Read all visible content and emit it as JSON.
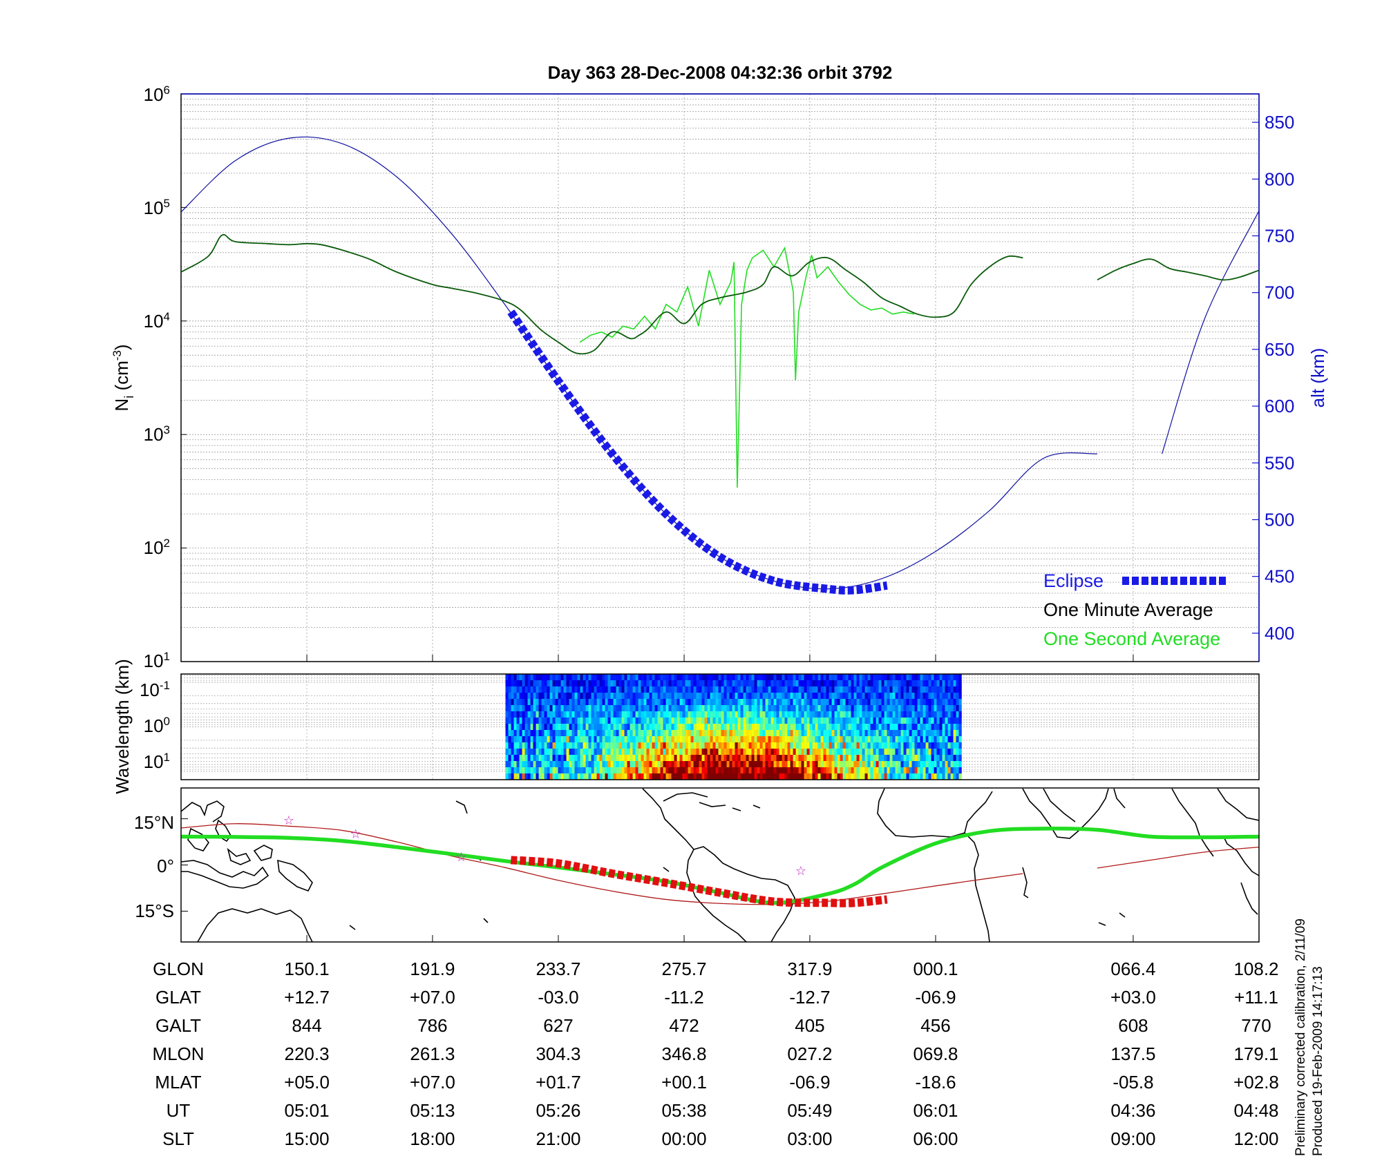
{
  "chart_data": [
    {
      "type": "line",
      "title": "Day 363  28-Dec-2008 04:32:36   orbit 3792",
      "ylabel": "N",
      "ylabel_sub": "i",
      "ylabel_units": "(cm",
      "ylabel_exp": "-3",
      "ylabel_close": ")",
      "yscale": "log",
      "ylim": [
        10,
        1000000
      ],
      "yticks": [
        {
          "base": "10",
          "exp": "1",
          "value": 10
        },
        {
          "base": "10",
          "exp": "2",
          "value": 100
        },
        {
          "base": "10",
          "exp": "3",
          "value": 1000
        },
        {
          "base": "10",
          "exp": "4",
          "value": 10000
        },
        {
          "base": "10",
          "exp": "5",
          "value": 100000
        },
        {
          "base": "10",
          "exp": "6",
          "value": 1000000
        }
      ],
      "y2label": "alt (km)",
      "y2lim": [
        375,
        875
      ],
      "y2ticks": [
        "400",
        "450",
        "500",
        "550",
        "600",
        "650",
        "700",
        "750",
        "800",
        "850"
      ],
      "grid": true,
      "legend_position": "bottom-right",
      "legend": [
        {
          "name": "Eclipse",
          "color": "#1a1ae6"
        },
        {
          "name": "One Minute Average",
          "color": "#000000"
        },
        {
          "name": "One Second Average",
          "color": "#22dd22"
        }
      ],
      "series": [
        {
          "name": "alt (km)",
          "color": "#1010a0",
          "axis": "right",
          "segments": [
            {
              "x": [
                0,
                5,
                10,
                15,
                20,
                25,
                30,
                35,
                40,
                45,
                50,
                55,
                60,
                65,
                70,
                75,
                80,
                85
              ],
              "y": [
                771,
                816,
                836,
                831,
                802,
                753,
                690,
                622,
                558,
                505,
                467,
                446,
                439,
                448,
                472,
                508,
                554,
                558
              ]
            },
            {
              "x": [
                91,
                95,
                100
              ],
              "y": [
                558,
                678,
                772
              ]
            }
          ]
        },
        {
          "name": "Eclipse",
          "color": "#1a1ae6",
          "axis": "right",
          "x": [
            30.6,
            35,
            40,
            45,
            50,
            55,
            60,
            62.5,
            65.5
          ],
          "y": [
            683,
            622,
            558,
            505,
            467,
            446,
            439,
            438,
            442
          ]
        },
        {
          "name": "One Minute Average",
          "color": "#000000",
          "axis": "left",
          "segments": [
            {
              "x": [
                0,
                2.5,
                3.8,
                5,
                8,
                10,
                11.7,
                13,
                15,
                17.5,
                20,
                23.3,
                25,
                27.5,
                30,
                31.5,
                33.3,
                35,
                36.7,
                38.3,
                40,
                41.7,
                42.5,
                43.3,
                45,
                46.7,
                48.3,
                50,
                52.5,
                54,
                55,
                56.7,
                58.3,
                60,
                61.7,
                63.3,
                65,
                66.7,
                68.3,
                70,
                71.7,
                73.3,
                75,
                76.7,
                78.1
              ],
              "y": [
                27000,
                37000,
                57000,
                50000,
                48000,
                47000,
                48000,
                47000,
                42000,
                35000,
                27000,
                21000,
                19500,
                17500,
                15000,
                12500,
                8500,
                6500,
                5200,
                5500,
                8000,
                7000,
                7500,
                8500,
                12000,
                9500,
                14000,
                16000,
                18000,
                21000,
                30000,
                25000,
                33000,
                36000,
                28000,
                22000,
                16000,
                13500,
                11500,
                10800,
                12000,
                21000,
                30000,
                37000,
                36000
              ]
            },
            {
              "x": [
                85,
                86.7,
                88.3,
                90,
                91.7,
                93.3,
                95,
                96.7,
                98.3,
                100
              ],
              "y": [
                23000,
                28000,
                32000,
                35000,
                29000,
                27000,
                25000,
                23000,
                24500,
                28000
              ]
            }
          ]
        },
        {
          "name": "One Second Average",
          "color": "#22dd22",
          "axis": "left",
          "x": [
            37,
            38,
            39,
            40,
            41,
            42,
            43,
            44,
            45,
            46,
            47,
            48,
            49,
            50,
            51,
            51.3,
            51.6,
            52,
            52.5,
            53,
            54,
            55,
            56,
            56.8,
            57,
            57.3,
            58,
            58.5,
            59,
            60,
            61,
            62,
            63,
            64,
            65,
            66,
            67,
            68
          ],
          "y": [
            6500,
            7500,
            8000,
            7200,
            9000,
            8500,
            11000,
            8500,
            14000,
            12000,
            20000,
            9000,
            28000,
            14000,
            22000,
            33000,
            340,
            14000,
            28000,
            36000,
            42000,
            30000,
            44000,
            18000,
            3000,
            12000,
            25000,
            38000,
            24000,
            30000,
            22000,
            17000,
            14000,
            12500,
            13000,
            11500,
            12000,
            11500
          ]
        }
      ]
    },
    {
      "type": "heatmap",
      "ylabel": "Wavelength (km)",
      "yscale": "log",
      "yticks": [
        {
          "base": "10",
          "exp": "-1"
        },
        {
          "base": "10",
          "exp": "0"
        },
        {
          "base": "10",
          "exp": "1"
        }
      ],
      "data_x_range": [
        30.1,
        72.2
      ],
      "colormap": "jet"
    },
    {
      "type": "map",
      "yticks": [
        "15°N",
        "0°",
        "15°S"
      ],
      "ylim": [
        -25,
        25
      ],
      "series": [
        {
          "name": "orbit track",
          "color": "#b01818",
          "segments": [
            {
              "x": [
                0,
                5,
                10,
                15,
                20,
                25,
                30,
                35,
                40,
                45,
                50,
                55,
                60,
                65,
                70,
                75,
                78.1
              ],
              "y": [
                12,
                13.4,
                12.6,
                11.2,
                7.5,
                3,
                -0.8,
                -5,
                -8.5,
                -11.2,
                -12.5,
                -12.8,
                -11.8,
                -9.4,
                -6.8,
                -4.3,
                -2.8
              ]
            },
            {
              "x": [
                85,
                90,
                95,
                100
              ],
              "y": [
                -1,
                1.6,
                4.2,
                5.8
              ]
            }
          ]
        },
        {
          "name": "eclipse",
          "color": "#e01010",
          "x": [
            30.6,
            35,
            40,
            45,
            50,
            55,
            60,
            62.5,
            65.5
          ],
          "y": [
            1.6,
            0.5,
            -2.8,
            -5.8,
            -9,
            -11.9,
            -12.3,
            -12.3,
            -11.2
          ]
        },
        {
          "name": "magnetic equator",
          "color": "#22dd22",
          "x": [
            0,
            5,
            10,
            15,
            20,
            25,
            30,
            35,
            40,
            45,
            50,
            55,
            60,
            62.5,
            65,
            70,
            75,
            80,
            85,
            90,
            95,
            100
          ],
          "y": [
            9.2,
            9.1,
            8.8,
            7.8,
            5.8,
            3.6,
            1.3,
            -0.8,
            -3,
            -5.4,
            -9,
            -12.3,
            -9.4,
            -6.2,
            -0.8,
            7,
            11,
            11.8,
            11.4,
            9.2,
            9,
            9.2
          ]
        }
      ],
      "stars": [
        {
          "x": 10,
          "y": 14.7
        },
        {
          "x": 16.2,
          "y": 10.3
        },
        {
          "x": 26,
          "y": 2.8
        },
        {
          "x": 57.5,
          "y": -1.7
        }
      ]
    }
  ],
  "table": {
    "rows": [
      {
        "label": "GLON",
        "values": [
          "150.1",
          "191.9",
          "233.7",
          "275.7",
          "317.9",
          "000.1",
          "066.4",
          "108.2"
        ]
      },
      {
        "label": "GLAT",
        "values": [
          "+12.7",
          "+07.0",
          "-03.0",
          "-11.2",
          "-12.7",
          "-06.9",
          "+03.0",
          "+11.1"
        ]
      },
      {
        "label": "GALT",
        "values": [
          "844",
          "786",
          "627",
          "472",
          "405",
          "456",
          "608",
          "770"
        ]
      },
      {
        "label": "MLON",
        "values": [
          "220.3",
          "261.3",
          "304.3",
          "346.8",
          "027.2",
          "069.8",
          "137.5",
          "179.1"
        ]
      },
      {
        "label": "MLAT",
        "values": [
          "+05.0",
          "+07.0",
          "+01.7",
          "+00.1",
          "-06.9",
          "-18.6",
          "-05.8",
          "+02.8"
        ]
      },
      {
        "label": "UT",
        "values": [
          "05:01",
          "05:13",
          "05:26",
          "05:38",
          "05:49",
          "06:01",
          "04:36",
          "04:48"
        ]
      },
      {
        "label": "SLT",
        "values": [
          "15:00",
          "18:00",
          "21:00",
          "00:00",
          "03:00",
          "06:00",
          "09:00",
          "12:00"
        ]
      }
    ]
  },
  "footer": {
    "line1": "Preliminary corrected calibration, 2/11/09",
    "line2": "Produced 19-Feb-2009 14:17:13"
  }
}
